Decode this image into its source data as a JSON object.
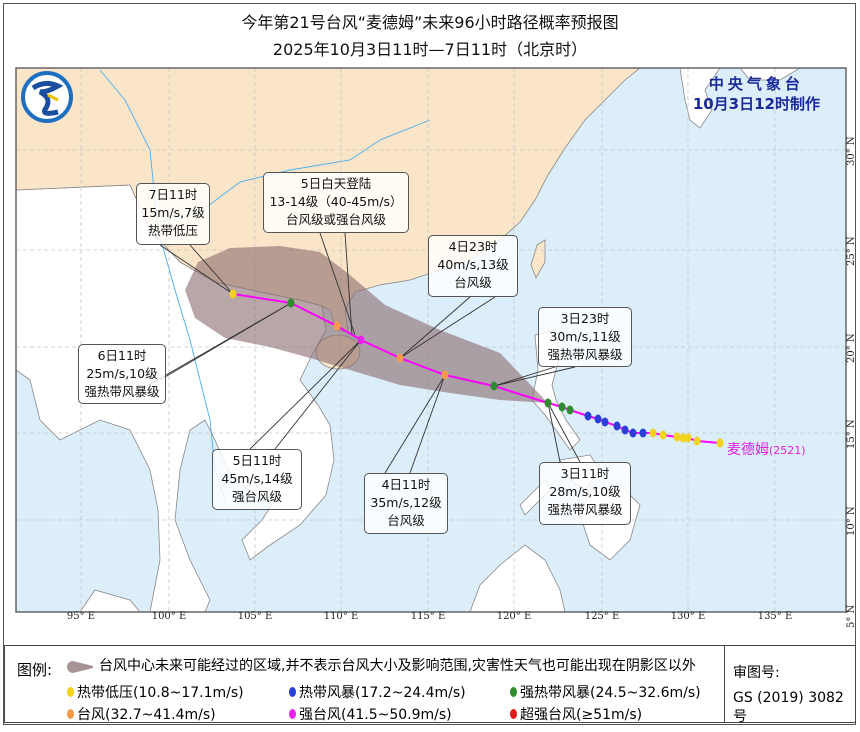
{
  "header": {
    "title": "今年第21号台风“麦德姆”未来96小时路径概率预报图",
    "subtitle": "2025年10月3日11时—7日11时（北京时）"
  },
  "agency": {
    "name": "中央气象台",
    "made": "10月3日12时制作"
  },
  "storm": {
    "name": "麦德姆",
    "code": "(2521)"
  },
  "colors": {
    "tropical_depression": "#f2d21a",
    "tropical_storm": "#2a3fd8",
    "severe_tropical_storm": "#2e8b2e",
    "typhoon": "#f59a4a",
    "severe_typhoon": "#ee22ee",
    "super_typhoon": "#e01818",
    "track": "#ff00ff",
    "cone": "#8a6a6e",
    "sea": "#dceefa",
    "china_land": "#fbe5c8",
    "other_land": "#ffffff"
  },
  "callouts": [
    {
      "id": "d7",
      "time": "7日11时",
      "wind": "15m/s,7级",
      "level": "热带低压"
    },
    {
      "id": "landfall",
      "time": "5日白天登陆",
      "wind": "13-14级（40-45m/s）",
      "level": "台风级或强台风级"
    },
    {
      "id": "d4_23",
      "time": "4日23时",
      "wind": "40m/s,13级",
      "level": "台风级"
    },
    {
      "id": "d3_23",
      "time": "3日23时",
      "wind": "30m/s,11级",
      "level": "强热带风暴级"
    },
    {
      "id": "d6",
      "time": "6日11时",
      "wind": "25m/s,10级",
      "level": "强热带风暴级"
    },
    {
      "id": "d5",
      "time": "5日11时",
      "wind": "45m/s,14级",
      "level": "强台风级"
    },
    {
      "id": "d4",
      "time": "4日11时",
      "wind": "35m/s,12级",
      "level": "台风级"
    },
    {
      "id": "d3",
      "time": "3日11时",
      "wind": "28m/s,10级",
      "level": "强热带风暴级"
    }
  ],
  "forecast_points": [
    {
      "time": "3日11时",
      "category": "severe_tropical_storm"
    },
    {
      "time": "3日23时",
      "category": "severe_tropical_storm"
    },
    {
      "time": "4日11时",
      "category": "typhoon"
    },
    {
      "time": "4日23时",
      "category": "typhoon"
    },
    {
      "time": "5日11时",
      "category": "severe_typhoon"
    },
    {
      "time": "5日",
      "category": "typhoon"
    },
    {
      "time": "6日11时",
      "category": "severe_tropical_storm"
    },
    {
      "time": "7日11时",
      "category": "tropical_depression"
    }
  ],
  "past_points": [
    "severe_tropical_storm",
    "severe_tropical_storm",
    "tropical_storm",
    "tropical_storm",
    "tropical_storm",
    "tropical_storm",
    "tropical_storm",
    "tropical_storm",
    "tropical_storm",
    "tropical_depression",
    "tropical_depression",
    "tropical_depression",
    "tropical_depression",
    "tropical_depression",
    "tropical_depression",
    "tropical_depression"
  ],
  "axes": {
    "lon": [
      "95° E",
      "100° E",
      "105° E",
      "110° E",
      "115° E",
      "120° E",
      "125° E",
      "130° E",
      "135° E"
    ],
    "lat": [
      "30° N",
      "25° N",
      "20° N",
      "15° N",
      "10° N",
      "5° N"
    ]
  },
  "legend": {
    "heading": "图例:",
    "cone_text": "台风中心未来可能经过的区域,并不表示台风大小及影响范围,灾害性天气也可能出现在阴影区以外",
    "items": [
      {
        "label": "热带低压(10.8~17.1m/s)",
        "category": "tropical_depression"
      },
      {
        "label": "热带风暴(17.2~24.4m/s)",
        "category": "tropical_storm"
      },
      {
        "label": "强热带风暴(24.5~32.6m/s)",
        "category": "severe_tropical_storm"
      },
      {
        "label": "台风(32.7~41.4m/s)",
        "category": "typhoon"
      },
      {
        "label": "强台风(41.5~50.9m/s)",
        "category": "severe_typhoon"
      },
      {
        "label": "超强台风(≥51m/s)",
        "category": "super_typhoon"
      }
    ],
    "review_label": "审图号:",
    "review_number": "GS (2019) 3082号"
  }
}
